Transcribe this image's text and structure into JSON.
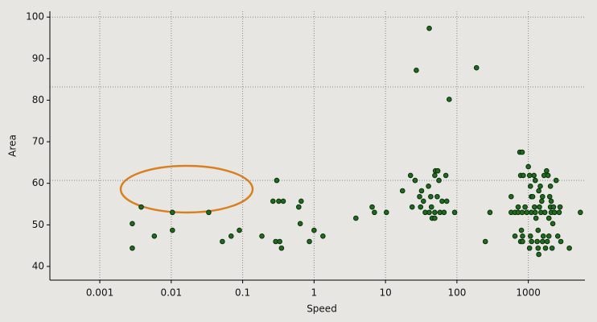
{
  "chart_data": {
    "type": "scatter",
    "x_label": "Speed",
    "y_label": "Area",
    "x_log": true,
    "xlim": [
      0.0002,
      6200
    ],
    "ylim": [
      36.7,
      101.4
    ],
    "xticks": [
      0.001,
      0.01,
      0.1,
      1,
      10,
      100,
      1000
    ],
    "yticks": [
      40,
      50,
      60,
      70,
      80,
      90,
      100
    ],
    "grid_x": true,
    "hlines": [
      100,
      83.2,
      60.7
    ],
    "color": "#1e6b1e",
    "x": [
      0.00285,
      0.00285,
      0.0038,
      0.0058,
      0.0104,
      0.0104,
      0.0335,
      0.052,
      0.069,
      0.09,
      0.186,
      0.3,
      0.266,
      0.32,
      0.37,
      0.29,
      0.33,
      0.35,
      0.61,
      0.66,
      0.64,
      0.86,
      1.0,
      1.33,
      3.85,
      6.5,
      7.0,
      10.3,
      17.3,
      22.4,
      23.6,
      27,
      26,
      30,
      32,
      34,
      31,
      36,
      40,
      41,
      41,
      43,
      44,
      45,
      49,
      50,
      54,
      53,
      49,
      49,
      56,
      58,
      62,
      66,
      70,
      72,
      78,
      93,
      188,
      250,
      290,
      575,
      575,
      650,
      650,
      720,
      720,
      760,
      820,
      780,
      850,
      800,
      780,
      830,
      830,
      820,
      900,
      950,
      1000,
      1040,
      1070,
      1100,
      1100,
      1070,
      1040,
      1110,
      1150,
      1200,
      1220,
      1250,
      1250,
      1280,
      1330,
      1370,
      1370,
      1400,
      1400,
      1430,
      1470,
      1500,
      1540,
      1580,
      1580,
      1620,
      1660,
      1700,
      1740,
      1800,
      1840,
      1890,
      1940,
      1940,
      1990,
      2040,
      2040,
      2090,
      2090,
      2150,
      2200,
      2250,
      2330,
      2450,
      2580,
      2700,
      2780,
      2850,
      3750,
      5350
    ],
    "y": [
      44.4,
      50.3,
      54.3,
      47.3,
      53.0,
      48.7,
      53.0,
      46.0,
      47.3,
      48.7,
      47.3,
      60.7,
      55.7,
      55.7,
      55.7,
      46.0,
      46.0,
      44.4,
      54.3,
      55.7,
      50.3,
      46.0,
      48.7,
      47.3,
      51.6,
      54.3,
      53.0,
      53.0,
      58.2,
      61.9,
      54.3,
      87.2,
      60.7,
      56.8,
      58.2,
      55.7,
      54.3,
      53.0,
      59.3,
      97.3,
      53.0,
      56.8,
      54.3,
      51.6,
      61.9,
      63.0,
      63.0,
      56.8,
      53.0,
      51.6,
      60.7,
      53.0,
      55.7,
      53.0,
      61.9,
      55.7,
      80.2,
      53.0,
      87.8,
      46.0,
      53.0,
      56.8,
      53.0,
      47.3,
      53.0,
      53.0,
      54.3,
      67.5,
      67.5,
      61.9,
      61.9,
      48.7,
      46.0,
      47.3,
      46.0,
      53.0,
      54.3,
      53.0,
      64.0,
      61.9,
      59.3,
      56.8,
      53.0,
      47.3,
      44.4,
      46.0,
      56.8,
      61.9,
      54.3,
      60.7,
      53.0,
      51.6,
      46.0,
      48.7,
      44.4,
      42.9,
      58.2,
      54.3,
      59.3,
      53.0,
      55.7,
      56.8,
      46.0,
      47.3,
      61.9,
      53.0,
      44.4,
      63.0,
      46.0,
      61.9,
      51.6,
      47.3,
      56.8,
      54.3,
      59.3,
      53.0,
      55.7,
      44.4,
      50.3,
      54.3,
      53.0,
      60.7,
      47.3,
      53.0,
      54.3,
      46.0,
      44.4,
      53.0
    ]
  }
}
